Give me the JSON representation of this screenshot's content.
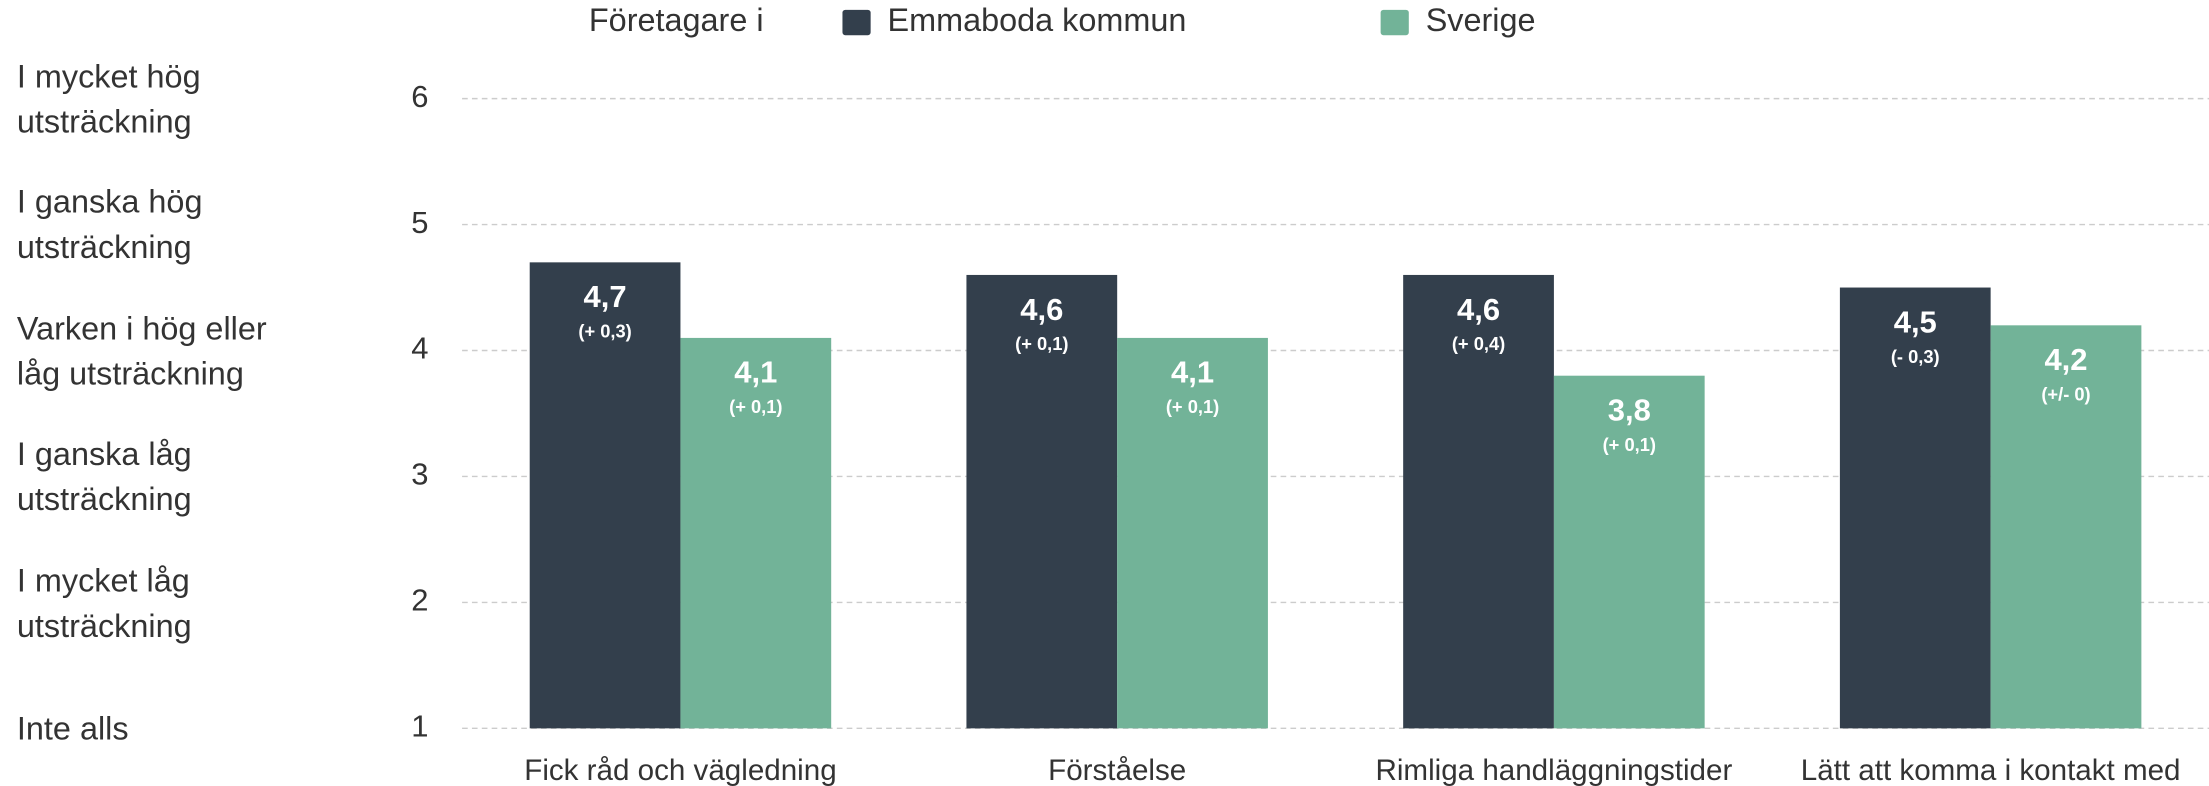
{
  "chart_data": {
    "type": "bar",
    "legend_title": "Företagare i",
    "categories": [
      "Fick råd och vägledning",
      "Förståelse",
      "Rimliga handläggningstider",
      "Lätt att komma i kontakt med"
    ],
    "series": [
      {
        "name": "Emmaboda kommun",
        "color": "#333f4c",
        "values": [
          4.7,
          4.6,
          4.6,
          4.5
        ],
        "value_labels": [
          "4,7",
          "4,6",
          "4,6",
          "4,5"
        ],
        "change_labels": [
          "(+ 0,3)",
          "(+ 0,1)",
          "(+ 0,4)",
          "(- 0,3)"
        ]
      },
      {
        "name": "Sverige",
        "color": "#72b398",
        "values": [
          4.1,
          4.1,
          3.8,
          4.2
        ],
        "value_labels": [
          "4,1",
          "4,1",
          "3,8",
          "4,2"
        ],
        "change_labels": [
          "(+ 0,1)",
          "(+ 0,1)",
          "(+ 0,1)",
          "(+/- 0)"
        ]
      }
    ],
    "ylim": [
      1,
      6
    ],
    "yticks": [
      1,
      2,
      3,
      4,
      5,
      6
    ],
    "grid": true,
    "ylevel_labels": [
      {
        "value": 6,
        "label": "I mycket hög utsträckning"
      },
      {
        "value": 5,
        "label": "I ganska hög utsträckning"
      },
      {
        "value": 4,
        "label": "Varken i hög eller låg utsträckning"
      },
      {
        "value": 3,
        "label": "I ganska låg utsträckning"
      },
      {
        "value": 2,
        "label": "I mycket låg utsträckning"
      },
      {
        "value": 1,
        "label": "Inte alls"
      }
    ]
  }
}
